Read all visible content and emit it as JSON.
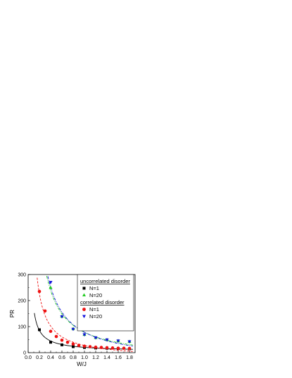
{
  "chart_data": {
    "type": "scatter",
    "xlabel": "W/J",
    "ylabel": "PR",
    "xlim": [
      0.0,
      1.9
    ],
    "ylim": [
      0,
      300
    ],
    "xticks": [
      "0.0",
      "0.2",
      "0.4",
      "0.6",
      "0.8",
      "1.0",
      "1.2",
      "1.4",
      "1.6",
      "1.8"
    ],
    "yticks": [
      "0",
      "100",
      "200",
      "300"
    ],
    "grid": false,
    "legend_position": "top-right",
    "legend_groups": [
      {
        "heading": "uncorrelated disorder",
        "entries": [
          "N=1",
          "N=20"
        ]
      },
      {
        "heading": "correlated disorder",
        "entries": [
          "N=1",
          "N=20"
        ]
      }
    ],
    "series": [
      {
        "name": "N=1",
        "group": "uncorrelated disorder",
        "marker": "square",
        "color": "#000000",
        "fit_style": "solid",
        "x": [
          0.2,
          0.4,
          0.6,
          0.8,
          1.0,
          1.2,
          1.4,
          1.6,
          1.8
        ],
        "y": [
          88,
          40,
          30,
          23,
          20,
          18,
          17,
          16,
          15
        ]
      },
      {
        "name": "N=20",
        "group": "uncorrelated disorder",
        "marker": "triangle-up",
        "color": "#22cc22",
        "fit_style": "dash-dot",
        "x": [
          0.4,
          0.6,
          0.8,
          1.0,
          1.2,
          1.4,
          1.6,
          1.8
        ],
        "y": [
          250,
          140,
          92,
          70,
          58,
          50,
          46,
          43
        ]
      },
      {
        "name": "N=1",
        "group": "correlated disorder",
        "marker": "circle",
        "color": "#ee1111",
        "fit_style": "dashed",
        "x": [
          0.2,
          0.3,
          0.4,
          0.5,
          0.6,
          0.7,
          0.8,
          0.9,
          1.0,
          1.1,
          1.2,
          1.3,
          1.4,
          1.5,
          1.6,
          1.7,
          1.8
        ],
        "y": [
          235,
          160,
          82,
          62,
          48,
          40,
          33,
          28,
          25,
          23,
          21,
          20,
          19,
          18,
          17,
          17,
          16
        ]
      },
      {
        "name": "N=20",
        "group": "correlated disorder",
        "marker": "triangle-down",
        "color": "#1111dd",
        "fit_style": "dash-dot",
        "x": [
          0.4,
          0.6,
          0.8,
          1.0,
          1.2,
          1.4,
          1.6,
          1.8
        ],
        "y": [
          270,
          138,
          90,
          69,
          57,
          49,
          45,
          42
        ]
      }
    ]
  }
}
